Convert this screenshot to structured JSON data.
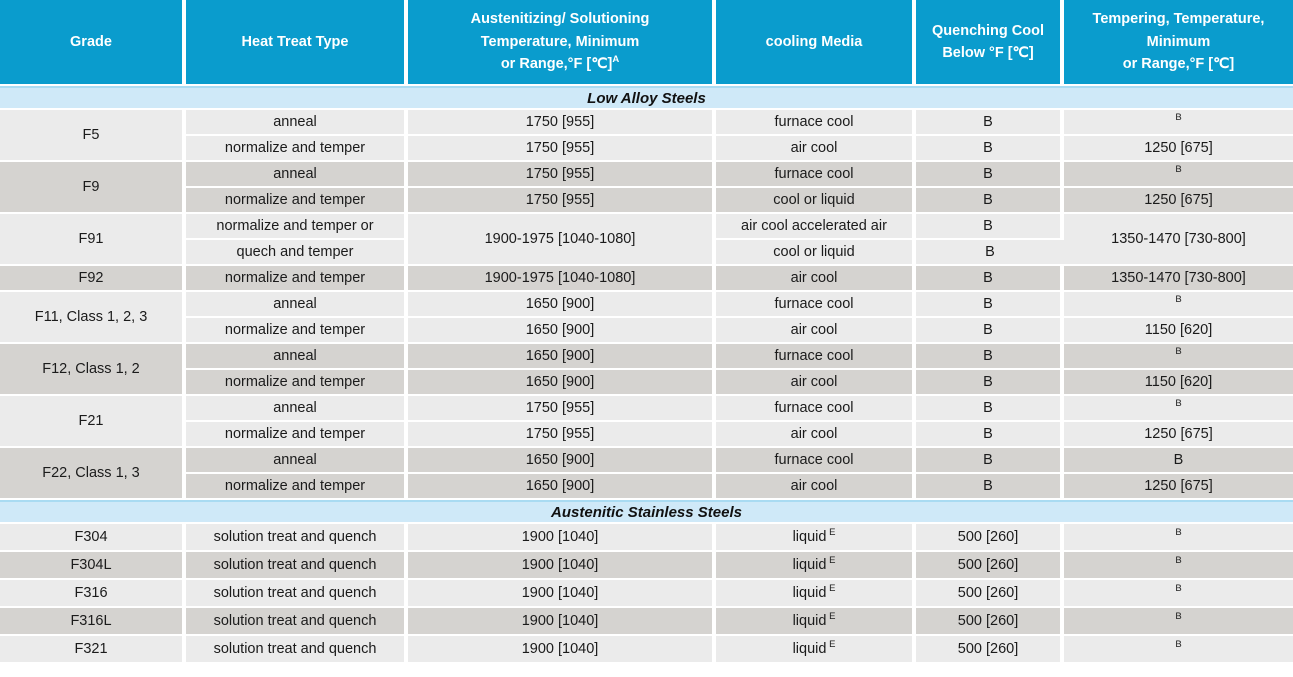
{
  "colors": {
    "header_bg": "#0a9ccd",
    "header_text": "#ffffff",
    "section_bg": "#cfe9f8",
    "row_light": "#ebebeb",
    "row_dark": "#d5d3d0",
    "grid": "#ffffff",
    "body_text": "#1b1b1b"
  },
  "header": {
    "columns": [
      {
        "lines": [
          "Grade"
        ]
      },
      {
        "lines": [
          "Heat Treat Type"
        ]
      },
      {
        "lines": [
          "Austenitizing/ Solutioning",
          "Temperature, Minimum",
          "or Range,°F [℃]"
        ],
        "sup": "A"
      },
      {
        "lines": [
          "cooling Media"
        ]
      },
      {
        "lines": [
          "Quenching Cool",
          "Below °F [℃]"
        ]
      },
      {
        "lines": [
          "Tempering, Temperature,",
          "Minimum",
          "or Range,°F [℃]"
        ]
      }
    ]
  },
  "sections": [
    {
      "title": "Low Alloy Steels",
      "groups": [
        {
          "shade": "light",
          "rows": [
            [
              {
                "t": "F5",
                "rs": 2
              },
              {
                "t": "anneal"
              },
              {
                "t": "1750 [955]"
              },
              {
                "t": "furnace cool"
              },
              {
                "t": "B"
              },
              {
                "sup": "B"
              }
            ],
            [
              null,
              {
                "t": "normalize and temper"
              },
              {
                "t": "1750 [955]"
              },
              {
                "t": "air cool"
              },
              {
                "t": "B"
              },
              {
                "t": "1250 [675]"
              }
            ]
          ]
        },
        {
          "shade": "dark",
          "rows": [
            [
              {
                "t": "F9",
                "rs": 2
              },
              {
                "t": "anneal"
              },
              {
                "t": "1750 [955]"
              },
              {
                "t": "furnace cool"
              },
              {
                "t": "B"
              },
              {
                "sup": "B"
              }
            ],
            [
              null,
              {
                "t": "normalize and temper"
              },
              {
                "t": "1750 [955]"
              },
              {
                "t": "cool or liquid"
              },
              {
                "t": "B"
              },
              {
                "t": "1250 [675]"
              }
            ]
          ]
        },
        {
          "shade": "light",
          "rows": [
            [
              {
                "t": "F91",
                "rs": 2
              },
              {
                "t": "normalize and temper or"
              },
              {
                "t": "1900-1975 [1040-1080]",
                "rs": 2
              },
              {
                "t": "air cool accelerated air"
              },
              {
                "t": "B"
              },
              {
                "t": "1350-1470 [730-800]",
                "rs": 2,
                "va": "top"
              }
            ],
            [
              null,
              {
                "t": "quech and temper"
              },
              null,
              {
                "t": "cool or liquid"
              },
              {
                "t": "B"
              },
              null
            ]
          ]
        },
        {
          "shade": "dark",
          "rows": [
            [
              {
                "t": "F92"
              },
              {
                "t": "normalize and temper"
              },
              {
                "t": "1900-1975 [1040-1080]"
              },
              {
                "t": "air cool"
              },
              {
                "t": "B"
              },
              {
                "t": "1350-1470 [730-800]"
              }
            ]
          ]
        },
        {
          "shade": "light",
          "rows": [
            [
              {
                "t": "F11, Class 1, 2, 3",
                "rs": 2
              },
              {
                "t": "anneal"
              },
              {
                "t": "1650 [900]"
              },
              {
                "t": "furnace cool"
              },
              {
                "t": "B"
              },
              {
                "sup": "B"
              }
            ],
            [
              null,
              {
                "t": "normalize and temper"
              },
              {
                "t": "1650 [900]"
              },
              {
                "t": "air cool"
              },
              {
                "t": "B"
              },
              {
                "t": "1150 [620]"
              }
            ]
          ]
        },
        {
          "shade": "dark",
          "rows": [
            [
              {
                "t": "F12, Class 1, 2",
                "rs": 2
              },
              {
                "t": "anneal"
              },
              {
                "t": "1650 [900]"
              },
              {
                "t": "furnace cool"
              },
              {
                "t": "B"
              },
              {
                "sup": "B"
              }
            ],
            [
              null,
              {
                "t": "normalize and temper"
              },
              {
                "t": "1650 [900]"
              },
              {
                "t": "air cool"
              },
              {
                "t": "B"
              },
              {
                "t": "1150 [620]"
              }
            ]
          ]
        },
        {
          "shade": "light",
          "rows": [
            [
              {
                "t": "F21",
                "rs": 2
              },
              {
                "t": "anneal"
              },
              {
                "t": "1750 [955]"
              },
              {
                "t": "furnace cool"
              },
              {
                "t": "B"
              },
              {
                "sup": "B"
              }
            ],
            [
              null,
              {
                "t": "normalize and temper"
              },
              {
                "t": "1750 [955]"
              },
              {
                "t": "air cool"
              },
              {
                "t": "B"
              },
              {
                "t": "1250 [675]"
              }
            ]
          ]
        },
        {
          "shade": "dark",
          "rows": [
            [
              {
                "t": "F22, Class 1, 3",
                "rs": 2
              },
              {
                "t": "anneal"
              },
              {
                "t": "1650 [900]"
              },
              {
                "t": "furnace cool"
              },
              {
                "t": "B"
              },
              {
                "t": "B"
              }
            ],
            [
              null,
              {
                "t": "normalize and temper"
              },
              {
                "t": "1650 [900]"
              },
              {
                "t": "air cool"
              },
              {
                "t": "B"
              },
              {
                "t": "1250 [675]"
              }
            ]
          ]
        }
      ]
    },
    {
      "title": "Austenitic Stainless Steels",
      "groups": [
        {
          "shade": "light",
          "tall": true,
          "rows": [
            [
              {
                "t": "F304"
              },
              {
                "t": "solution treat and quench"
              },
              {
                "t": "1900 [1040]"
              },
              {
                "t": "liquid",
                "sup": "E"
              },
              {
                "t": "500 [260]"
              },
              {
                "sup": "B"
              }
            ]
          ]
        },
        {
          "shade": "dark",
          "tall": true,
          "rows": [
            [
              {
                "t": "F304L"
              },
              {
                "t": "solution treat and quench"
              },
              {
                "t": "1900 [1040]"
              },
              {
                "t": "liquid",
                "sup": "E"
              },
              {
                "t": "500 [260]"
              },
              {
                "sup": "B"
              }
            ]
          ]
        },
        {
          "shade": "light",
          "tall": true,
          "rows": [
            [
              {
                "t": "F316"
              },
              {
                "t": "solution treat and quench"
              },
              {
                "t": "1900 [1040]"
              },
              {
                "t": "liquid",
                "sup": "E"
              },
              {
                "t": "500 [260]"
              },
              {
                "sup": "B"
              }
            ]
          ]
        },
        {
          "shade": "dark",
          "tall": true,
          "rows": [
            [
              {
                "t": "F316L"
              },
              {
                "t": "solution treat and quench"
              },
              {
                "t": "1900 [1040]"
              },
              {
                "t": "liquid",
                "sup": "E"
              },
              {
                "t": "500 [260]"
              },
              {
                "sup": "B"
              }
            ]
          ]
        },
        {
          "shade": "light",
          "tall": true,
          "rows": [
            [
              {
                "t": "F321"
              },
              {
                "t": "solution treat and quench"
              },
              {
                "t": "1900 [1040]"
              },
              {
                "t": "liquid",
                "sup": "E"
              },
              {
                "t": "500 [260]"
              },
              {
                "sup": "B"
              }
            ]
          ]
        }
      ]
    }
  ]
}
